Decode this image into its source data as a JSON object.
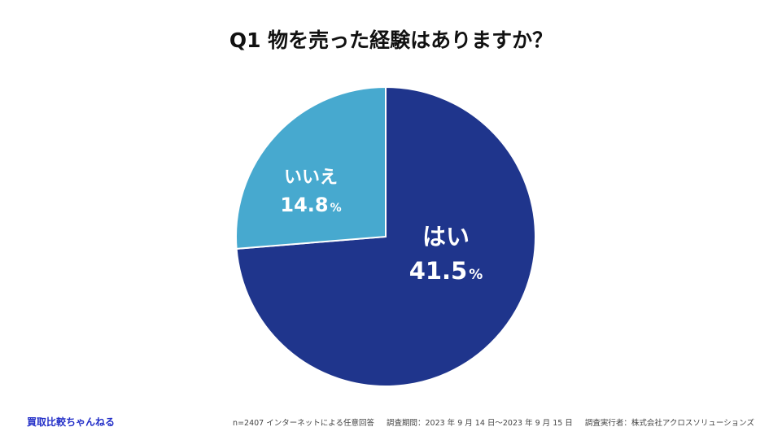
{
  "chart_data": {
    "type": "pie",
    "title": "Q1 物を売った経験はありますか？",
    "slices": [
      {
        "label": "はい",
        "value": 41.5,
        "display": "41.5",
        "unit": "%",
        "color": "#1f358c"
      },
      {
        "label": "いいえ",
        "value": 14.8,
        "display": "14.8",
        "unit": "%",
        "color": "#47a9cf"
      }
    ],
    "legend": "none"
  },
  "footer": {
    "brand": "買取比較ちゃんねる",
    "sample": "n=2407 インターネットによる任意回答",
    "period": "調査期間：2023 年 9 月 14 日〜2023 年 9 月 15 日",
    "publisher": "調査実行者：株式会社アクロスソリューションズ"
  }
}
